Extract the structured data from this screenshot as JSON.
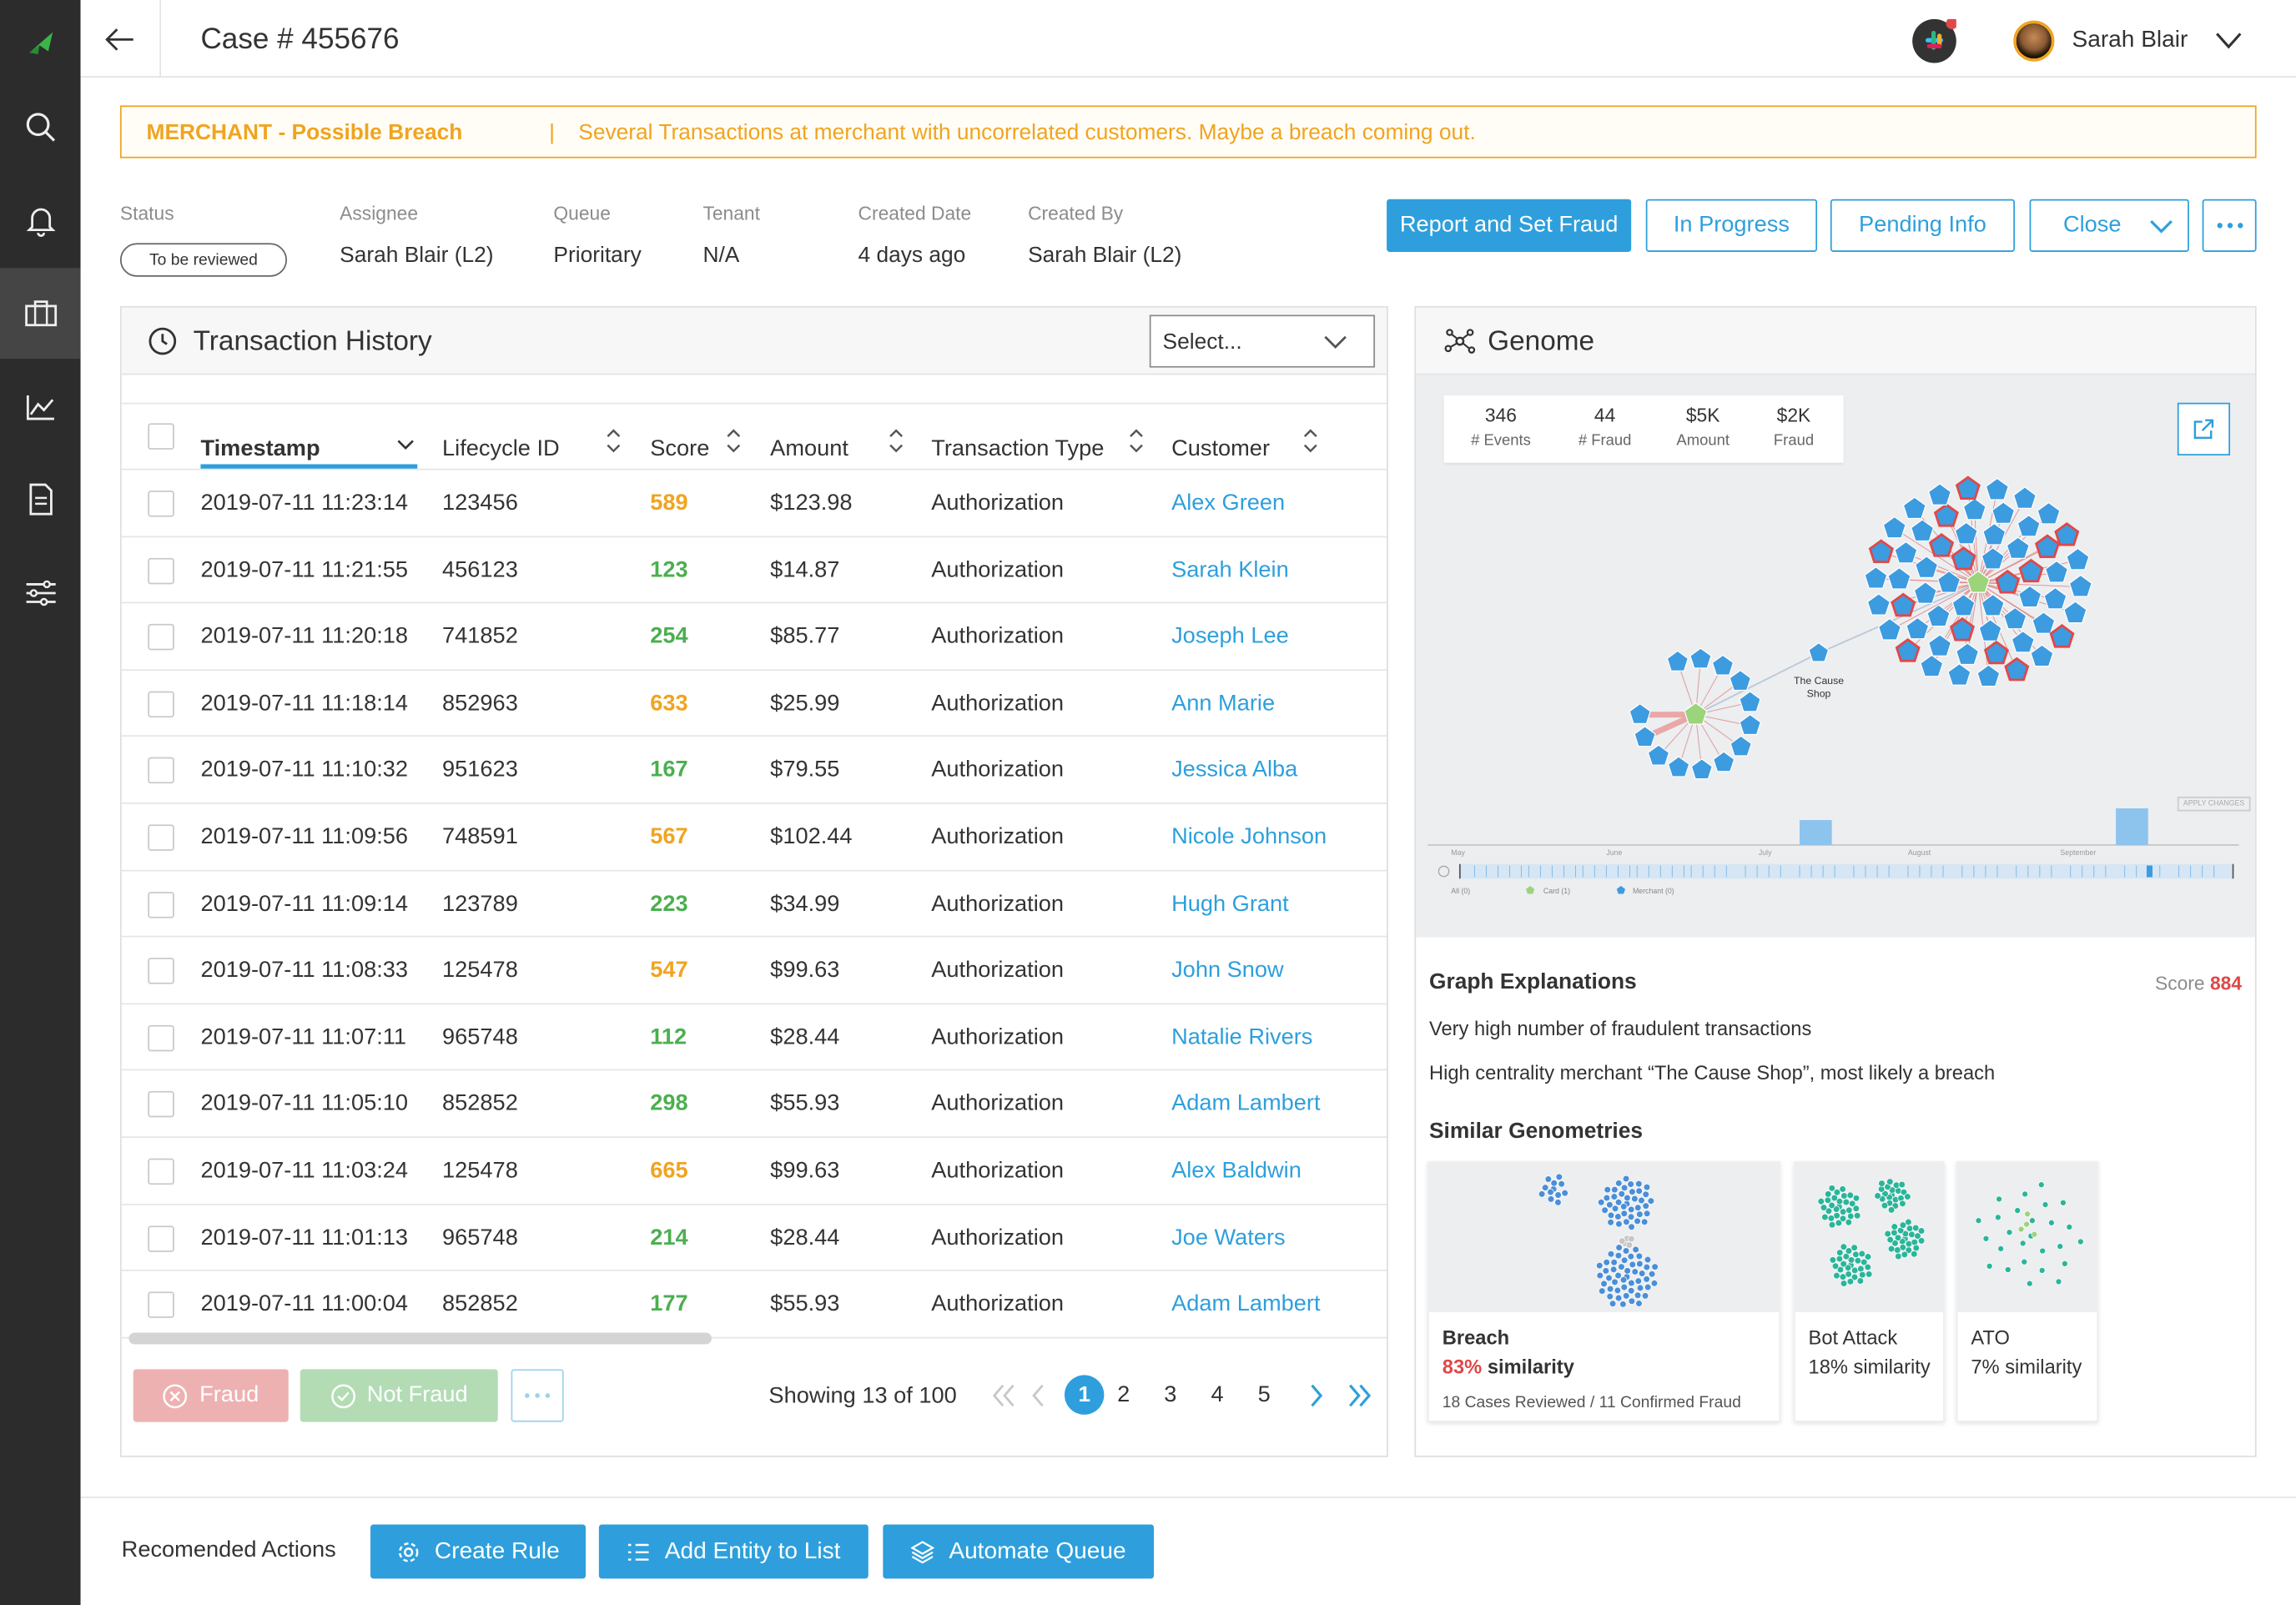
{
  "header": {
    "case_title": "Case # 455676",
    "user_name": "Sarah Blair"
  },
  "alert": {
    "title": "MERCHANT - Possible Breach",
    "separator": "|",
    "message": "Several Transactions at merchant with uncorrelated customers. Maybe a breach coming out."
  },
  "meta": {
    "status_label": "Status",
    "status_value": "To be reviewed",
    "assignee_label": "Assignee",
    "assignee_value": "Sarah Blair (L2)",
    "queue_label": "Queue",
    "queue_value": "Prioritary",
    "tenant_label": "Tenant",
    "tenant_value": "N/A",
    "created_date_label": "Created Date",
    "created_date_value": "4 days ago",
    "created_by_label": "Created By",
    "created_by_value": "Sarah Blair (L2)"
  },
  "actions": {
    "report": "Report and Set Fraud",
    "in_progress": "In Progress",
    "pending": "Pending Info",
    "close": "Close"
  },
  "transactions": {
    "title": "Transaction History",
    "select_placeholder": "Select...",
    "columns": [
      "Timestamp",
      "Lifecycle ID",
      "Score",
      "Amount",
      "Transaction Type",
      "Customer"
    ],
    "rows": [
      {
        "ts": "2019-07-11 11:23:14",
        "id": "123456",
        "score": "589",
        "amount": "$123.98",
        "type": "Authorization",
        "customer": "Alex Green"
      },
      {
        "ts": "2019-07-11 11:21:55",
        "id": "456123",
        "score": "123",
        "amount": "$14.87",
        "type": "Authorization",
        "customer": "Sarah Klein"
      },
      {
        "ts": "2019-07-11 11:20:18",
        "id": "741852",
        "score": "254",
        "amount": "$85.77",
        "type": "Authorization",
        "customer": "Joseph Lee"
      },
      {
        "ts": "2019-07-11 11:18:14",
        "id": "852963",
        "score": "633",
        "amount": "$25.99",
        "type": "Authorization",
        "customer": "Ann Marie"
      },
      {
        "ts": "2019-07-11 11:10:32",
        "id": "951623",
        "score": "167",
        "amount": "$79.55",
        "type": "Authorization",
        "customer": "Jessica Alba"
      },
      {
        "ts": "2019-07-11 11:09:56",
        "id": "748591",
        "score": "567",
        "amount": "$102.44",
        "type": "Authorization",
        "customer": "Nicole Johnson"
      },
      {
        "ts": "2019-07-11 11:09:14",
        "id": "123789",
        "score": "223",
        "amount": "$34.99",
        "type": "Authorization",
        "customer": "Hugh Grant"
      },
      {
        "ts": "2019-07-11 11:08:33",
        "id": "125478",
        "score": "547",
        "amount": "$99.63",
        "type": "Authorization",
        "customer": "John Snow"
      },
      {
        "ts": "2019-07-11 11:07:11",
        "id": "965748",
        "score": "112",
        "amount": "$28.44",
        "type": "Authorization",
        "customer": "Natalie Rivers"
      },
      {
        "ts": "2019-07-11 11:05:10",
        "id": "852852",
        "score": "298",
        "amount": "$55.93",
        "type": "Authorization",
        "customer": "Adam Lambert"
      },
      {
        "ts": "2019-07-11 11:03:24",
        "id": "125478",
        "score": "665",
        "amount": "$99.63",
        "type": "Authorization",
        "customer": "Alex Baldwin"
      },
      {
        "ts": "2019-07-11 11:01:13",
        "id": "965748",
        "score": "214",
        "amount": "$28.44",
        "type": "Authorization",
        "customer": "Joe Waters"
      },
      {
        "ts": "2019-07-11 11:00:04",
        "id": "852852",
        "score": "177",
        "amount": "$55.93",
        "type": "Authorization",
        "customer": "Adam Lambert"
      }
    ],
    "fraud_btn": "Fraud",
    "not_fraud_btn": "Not Fraud",
    "showing": "Showing 13 of 100",
    "pages": [
      "1",
      "2",
      "3",
      "4",
      "5"
    ],
    "current_page": "1"
  },
  "genome": {
    "title": "Genome",
    "stats": [
      {
        "value": "346",
        "label": "# Events"
      },
      {
        "value": "44",
        "label": "# Fraud"
      },
      {
        "value": "$5K",
        "label": "Amount"
      },
      {
        "value": "$2K",
        "label": "Fraud"
      }
    ],
    "node_label_line1": "The Cause",
    "node_label_line2": "Shop",
    "timeline_months": [
      "May",
      "June",
      "July",
      "August",
      "September"
    ],
    "apply_changes": "APPLY CHANGES",
    "legend": [
      "All (0)",
      "Card (1)",
      "Merchant (0)"
    ],
    "graph_explanations_title": "Graph Explanations",
    "score_label": "Score",
    "score_value": "884",
    "explanations": [
      "Very high number of fraudulent transactions",
      "High centrality merchant “The Cause Shop”, most likely a breach"
    ],
    "similar_title": "Similar Genometries",
    "similar": [
      {
        "name": "Breach",
        "pct": "83%",
        "suffix": "similarity",
        "note": "18 Cases Reviewed / 11 Confirmed Fraud"
      },
      {
        "name": "Bot Attack",
        "pct": "18% similarity"
      },
      {
        "name": "ATO",
        "pct": "7% similarity"
      }
    ]
  },
  "recommended": {
    "label": "Recomended Actions",
    "create_rule": "Create Rule",
    "add_entity": "Add Entity to List",
    "automate": "Automate Queue"
  },
  "colors": {
    "accent": "#2e9fdc",
    "warning": "#f0a420",
    "good": "#4caf50",
    "danger": "#e04848",
    "sidebar": "#2c2c2c"
  }
}
